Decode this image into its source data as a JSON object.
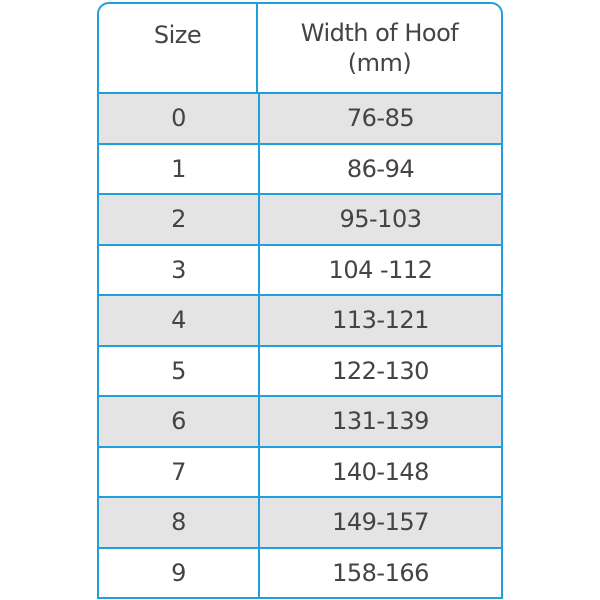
{
  "table": {
    "headers": [
      "Size",
      "Width of  Hoof\n(mm)"
    ],
    "rows": [
      [
        "0",
        "76-85"
      ],
      [
        "1",
        "86-94"
      ],
      [
        "2",
        "95-103"
      ],
      [
        "3",
        "104 -112"
      ],
      [
        "4",
        "113-121"
      ],
      [
        "5",
        "122-130"
      ],
      [
        "6",
        "131-139"
      ],
      [
        "7",
        "140-148"
      ],
      [
        "8",
        "149-157"
      ],
      [
        "9",
        "158-166"
      ]
    ],
    "colors": {
      "border": "#1ea0dc",
      "stripe": "#e4e4e4",
      "text": "#444444"
    }
  }
}
